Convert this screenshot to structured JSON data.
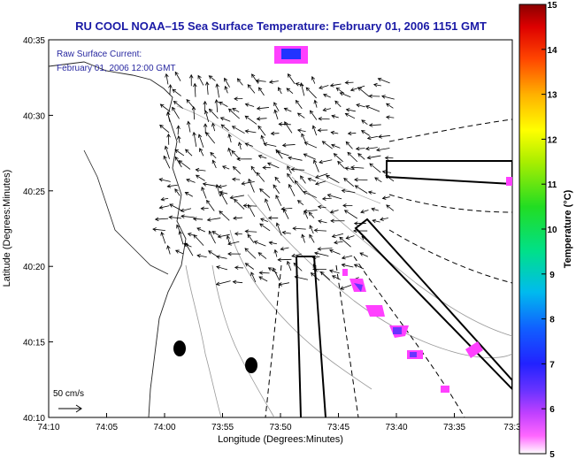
{
  "title": "RU COOL  NOAA–15  Sea Surface Temperature:  February 01, 2006 1151 GMT",
  "annotation": {
    "line1": "Raw Surface Current:",
    "line2": "February 01, 2006 12:00 GMT"
  },
  "axes": {
    "xlabel": "Longitude (Degrees:Minutes)",
    "ylabel": "Latitude (Degrees:Minutes)",
    "x_ticks": [
      "74:10",
      "74:05",
      "74:00",
      "73:55",
      "73:50",
      "73:45",
      "73:40",
      "73:35",
      "73:3"
    ],
    "y_ticks": [
      "40:35",
      "40:30",
      "40:25",
      "40:20",
      "40:15",
      "40:10"
    ]
  },
  "scale": {
    "label": "50 cm/s"
  },
  "colorbar": {
    "label": "Temperature (°C)",
    "ticks": [
      "15",
      "14",
      "13",
      "12",
      "11",
      "10",
      "9",
      "8",
      "7",
      "6",
      "5"
    ],
    "min": 5,
    "max": 15
  },
  "colors": {
    "title": "#1a1aa6",
    "annotation": "#2828a0",
    "warm_patch": "#ff40ff",
    "cool_patch": "#2233ff"
  }
}
